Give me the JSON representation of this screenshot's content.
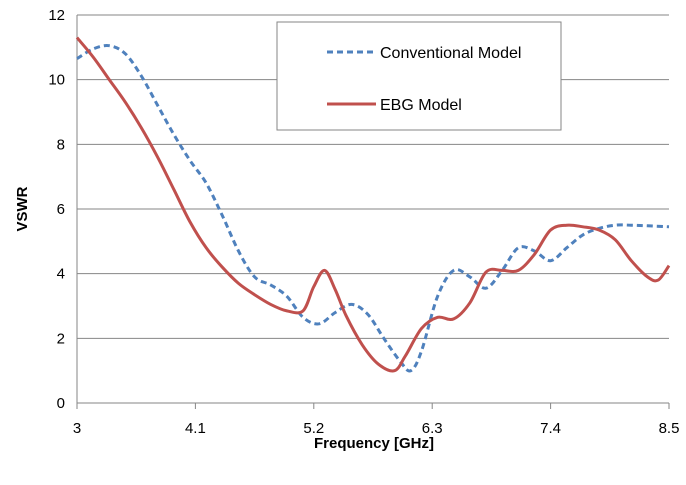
{
  "chart_data": {
    "type": "line",
    "title": "",
    "xlabel": "Frequency [GHz]",
    "ylabel": "VSWR",
    "xlim": [
      3,
      8.5
    ],
    "ylim": [
      0,
      12
    ],
    "x_ticks": [
      "3",
      "4.1",
      "5.2",
      "6.3",
      "7.4",
      "8.5"
    ],
    "y_ticks": [
      "0",
      "2",
      "4",
      "6",
      "8",
      "10",
      "12"
    ],
    "grid": "horizontal",
    "legend_position": "top-right",
    "series": [
      {
        "name": "Conventional Model",
        "color": "#4f81bd",
        "style": "dashed",
        "x": [
          3.0,
          3.15,
          3.3,
          3.45,
          3.6,
          3.75,
          3.9,
          4.05,
          4.2,
          4.35,
          4.5,
          4.65,
          4.8,
          4.95,
          5.1,
          5.25,
          5.4,
          5.55,
          5.7,
          5.85,
          6.0,
          6.1,
          6.2,
          6.35,
          6.5,
          6.65,
          6.8,
          6.95,
          7.1,
          7.25,
          7.4,
          7.55,
          7.7,
          7.85,
          8.0,
          8.15,
          8.3,
          8.5
        ],
        "y": [
          10.65,
          10.95,
          11.05,
          10.8,
          10.1,
          9.2,
          8.3,
          7.5,
          6.8,
          5.8,
          4.7,
          3.9,
          3.65,
          3.3,
          2.65,
          2.45,
          2.8,
          3.05,
          2.75,
          2.0,
          1.3,
          1.0,
          1.6,
          3.3,
          4.1,
          3.9,
          3.55,
          4.1,
          4.8,
          4.7,
          4.4,
          4.8,
          5.2,
          5.4,
          5.5,
          5.5,
          5.48,
          5.45
        ]
      },
      {
        "name": "EBG Model",
        "color": "#c0504d",
        "style": "solid",
        "x": [
          3.0,
          3.15,
          3.3,
          3.45,
          3.6,
          3.75,
          3.9,
          4.05,
          4.2,
          4.35,
          4.5,
          4.65,
          4.8,
          4.95,
          5.1,
          5.2,
          5.3,
          5.4,
          5.5,
          5.65,
          5.8,
          5.95,
          6.05,
          6.2,
          6.35,
          6.5,
          6.65,
          6.8,
          6.95,
          7.1,
          7.25,
          7.4,
          7.55,
          7.7,
          7.85,
          8.0,
          8.15,
          8.3,
          8.4,
          8.5
        ],
        "y": [
          11.3,
          10.7,
          10.0,
          9.3,
          8.5,
          7.6,
          6.6,
          5.6,
          4.8,
          4.2,
          3.7,
          3.35,
          3.05,
          2.85,
          2.85,
          3.6,
          4.1,
          3.5,
          2.7,
          1.8,
          1.2,
          1.0,
          1.45,
          2.3,
          2.65,
          2.6,
          3.1,
          4.05,
          4.1,
          4.1,
          4.6,
          5.35,
          5.5,
          5.45,
          5.35,
          5.05,
          4.4,
          3.9,
          3.8,
          4.25
        ]
      }
    ]
  }
}
